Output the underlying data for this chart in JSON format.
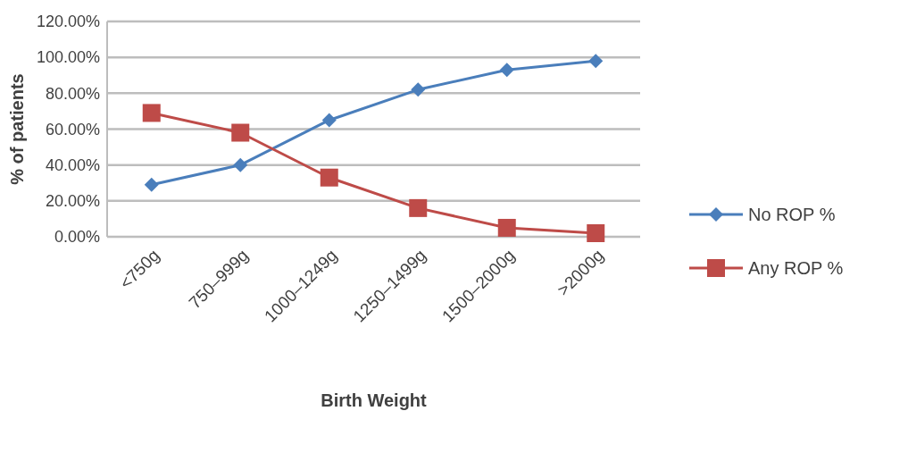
{
  "chart_data": {
    "type": "line",
    "xlabel": "Birth Weight",
    "ylabel": "% of patients",
    "categories": [
      "<750g",
      "750–999g",
      "1000–1249g",
      "1250–1499g",
      "1500–2000g",
      ">2000g"
    ],
    "series": [
      {
        "name": "No ROP %",
        "color": "#4a7ebb",
        "marker": "diamond",
        "values": [
          29,
          40,
          65,
          82,
          93,
          98
        ]
      },
      {
        "name": "Any ROP %",
        "color": "#be4b48",
        "marker": "square",
        "values": [
          69,
          58,
          33,
          16,
          5,
          2
        ]
      }
    ],
    "ylim": [
      0,
      120
    ],
    "yticks": [
      {
        "value": 0,
        "label": "0.00%"
      },
      {
        "value": 20,
        "label": "20.00%"
      },
      {
        "value": 40,
        "label": "40.00%"
      },
      {
        "value": 60,
        "label": "60.00%"
      },
      {
        "value": 80,
        "label": "80.00%"
      },
      {
        "value": 100,
        "label": "100.00%"
      },
      {
        "value": 120,
        "label": "120.00%"
      }
    ],
    "grid": "y",
    "legend": "right"
  }
}
